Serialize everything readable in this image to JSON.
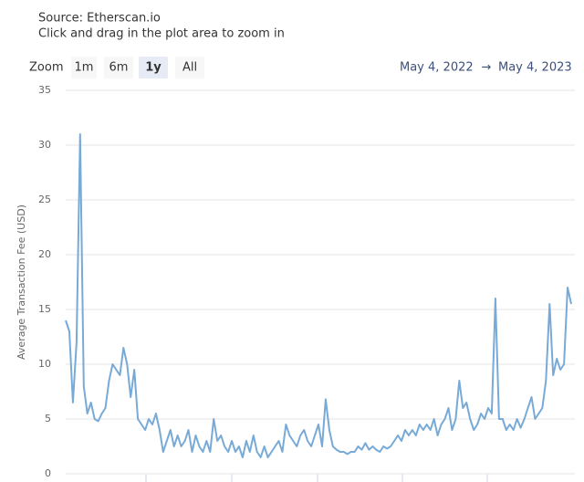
{
  "chart_data": {
    "type": "line",
    "subtitle": [
      "Source: Etherscan.io",
      "Click and drag in the plot area to zoom in"
    ],
    "zoom_label": "Zoom",
    "zoom_buttons": [
      "1m",
      "6m",
      "1y",
      "All"
    ],
    "zoom_selected": "1y",
    "range_from": "May 4, 2022",
    "range_arrow": "→",
    "range_to": "May 4, 2023",
    "ylabel": "Average Transaction Fee (USD)",
    "ylim": [
      0,
      35
    ],
    "yticks": [
      0,
      5,
      10,
      15,
      20,
      25,
      30,
      35
    ],
    "grid": true,
    "color": "#77aad6",
    "values": [
      14,
      13,
      6.5,
      12,
      31,
      8,
      5.5,
      6.5,
      5,
      4.8,
      5.5,
      6,
      8.5,
      10,
      9.5,
      9,
      11.5,
      10,
      7,
      9.5,
      5,
      4.5,
      4,
      5,
      4.5,
      5.5,
      4,
      2,
      3,
      4,
      2.5,
      3.5,
      2.5,
      3,
      4,
      2,
      3.5,
      2.5,
      2,
      3,
      2,
      5,
      3,
      3.5,
      2.5,
      2,
      3,
      2,
      2.5,
      1.5,
      3,
      2,
      3.5,
      2,
      1.5,
      2.5,
      1.5,
      2,
      2.5,
      3,
      2,
      4.5,
      3.5,
      3,
      2.5,
      3.5,
      4,
      3,
      2.5,
      3.5,
      4.5,
      2.5,
      6.8,
      4,
      2.5,
      2.2,
      2,
      2,
      1.8,
      2,
      2,
      2.5,
      2.2,
      2.8,
      2.2,
      2.5,
      2.2,
      2,
      2.5,
      2.3,
      2.5,
      3,
      3.5,
      3,
      4,
      3.5,
      4,
      3.5,
      4.5,
      4,
      4.5,
      4,
      5,
      3.5,
      4.5,
      5,
      6,
      4,
      5,
      8.5,
      6,
      6.5,
      5,
      4,
      4.5,
      5.5,
      5,
      6,
      5.5,
      16,
      5,
      5,
      4,
      4.5,
      4,
      5,
      4.2,
      5,
      6,
      7,
      5,
      5.5,
      6,
      8.5,
      15.5,
      9,
      10.5,
      9.5,
      10,
      17,
      15.5
    ]
  }
}
